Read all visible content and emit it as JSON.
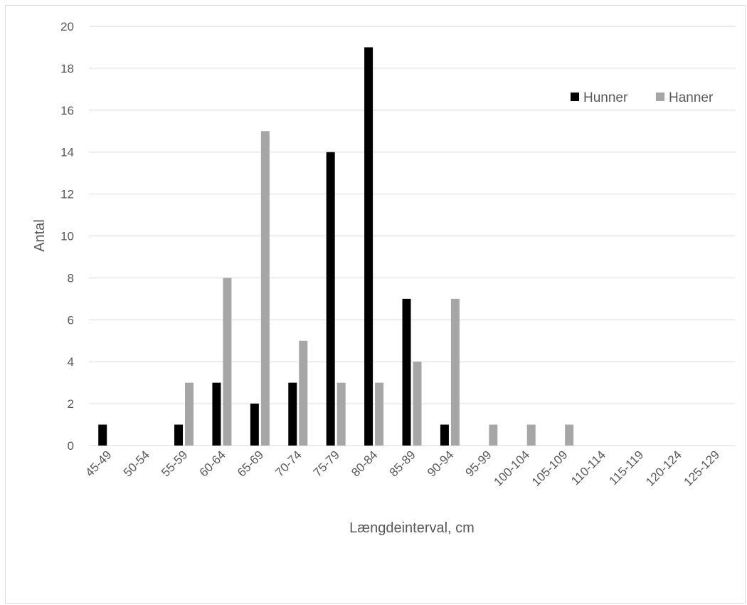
{
  "chart_data": {
    "type": "bar",
    "title": "",
    "xlabel": "Længdeinterval, cm",
    "ylabel": "Antal",
    "ylim": [
      0,
      20
    ],
    "yticks": [
      "0",
      "2",
      "4",
      "6",
      "8",
      "10",
      "12",
      "14",
      "16",
      "18",
      "20"
    ],
    "grid": true,
    "legend_position": "top-right",
    "categories": [
      "45-49",
      "50-54",
      "55-59",
      "60-64",
      "65-69",
      "70-74",
      "75-79",
      "80-84",
      "85-89",
      "90-94",
      "95-99",
      "100-104",
      "105-109",
      "110-114",
      "115-119",
      "120-124",
      "125-129"
    ],
    "series": [
      {
        "name": "Hunner",
        "color": "#000000",
        "values": [
          1,
          0,
          1,
          3,
          2,
          3,
          14,
          19,
          7,
          1,
          0,
          0,
          0,
          0,
          0,
          0,
          0
        ]
      },
      {
        "name": "Hanner",
        "color": "#a6a6a6",
        "values": [
          0,
          0,
          3,
          8,
          15,
          5,
          3,
          3,
          4,
          7,
          1,
          1,
          1,
          0,
          0,
          0,
          0
        ]
      }
    ]
  }
}
